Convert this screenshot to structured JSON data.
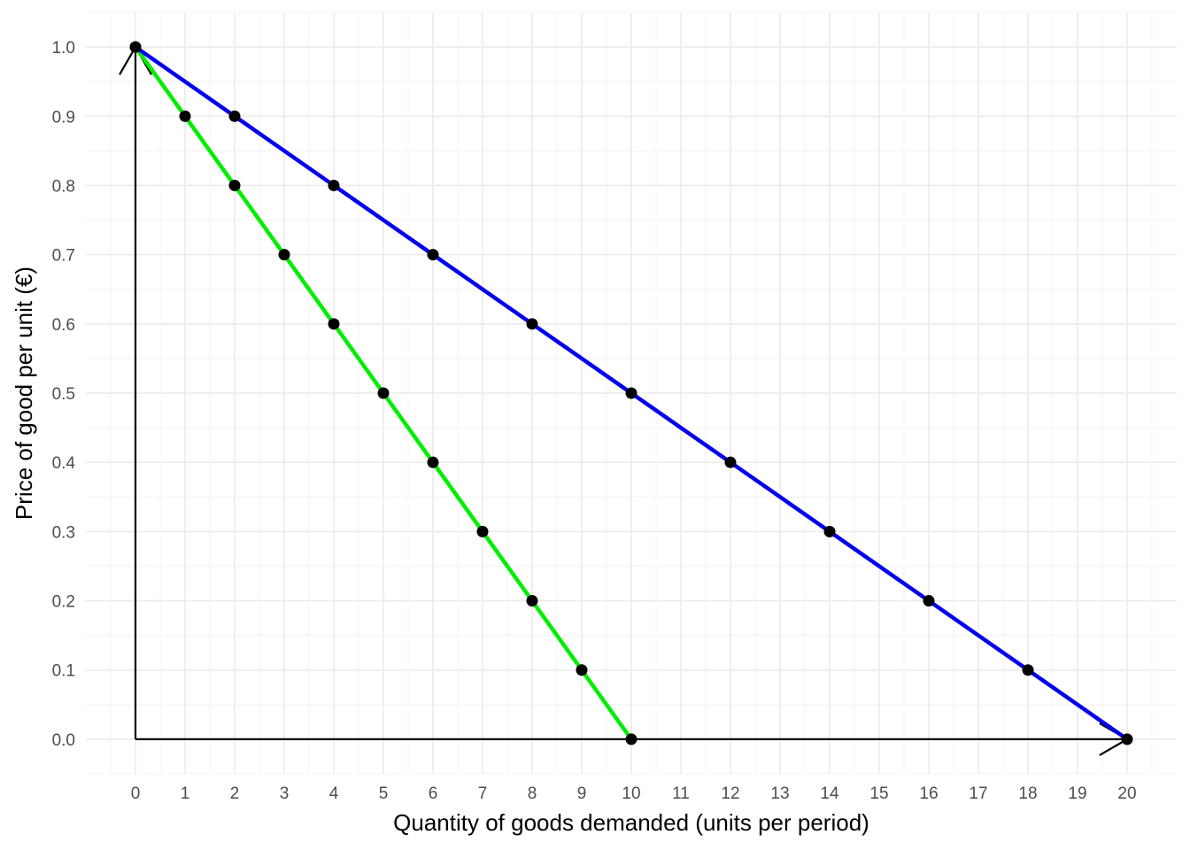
{
  "chart_data": {
    "type": "line",
    "title": "",
    "xlabel": "Quantity of goods demanded (units per period)",
    "ylabel": "Price of good per unit (€)",
    "xlim": [
      -1,
      21
    ],
    "ylim": [
      -0.05,
      1.05
    ],
    "grid": true,
    "legend": "none",
    "x_ticks": [
      0,
      1,
      2,
      3,
      4,
      5,
      6,
      7,
      8,
      9,
      10,
      11,
      12,
      13,
      14,
      15,
      16,
      17,
      18,
      19,
      20
    ],
    "x_tick_labels": [
      "0",
      "1",
      "2",
      "3",
      "4",
      "5",
      "6",
      "7",
      "8",
      "9",
      "10",
      "11",
      "12",
      "13",
      "14",
      "15",
      "16",
      "17",
      "18",
      "19",
      "20"
    ],
    "y_ticks": [
      0,
      0.1,
      0.2,
      0.3,
      0.4,
      0.5,
      0.6,
      0.7,
      0.8,
      0.9,
      1.0
    ],
    "y_tick_labels": [
      "0.0",
      "0.1",
      "0.2",
      "0.3",
      "0.4",
      "0.5",
      "0.6",
      "0.7",
      "0.8",
      "0.9",
      "1.0"
    ],
    "axis_color": "#000000",
    "series": [
      {
        "color": "#00ee00",
        "x": [
          0,
          1,
          2,
          3,
          4,
          5,
          6,
          7,
          8,
          9,
          10
        ],
        "y": [
          1.0,
          0.9,
          0.8,
          0.7,
          0.6,
          0.5,
          0.4,
          0.3,
          0.2,
          0.1,
          0.0
        ]
      },
      {
        "color": "#0000ee",
        "x": [
          0,
          2,
          4,
          6,
          8,
          10,
          12,
          14,
          16,
          18,
          20
        ],
        "y": [
          1.0,
          0.9,
          0.8,
          0.7,
          0.6,
          0.5,
          0.4,
          0.3,
          0.2,
          0.1,
          0.0
        ]
      }
    ],
    "point_color": "#000000"
  }
}
